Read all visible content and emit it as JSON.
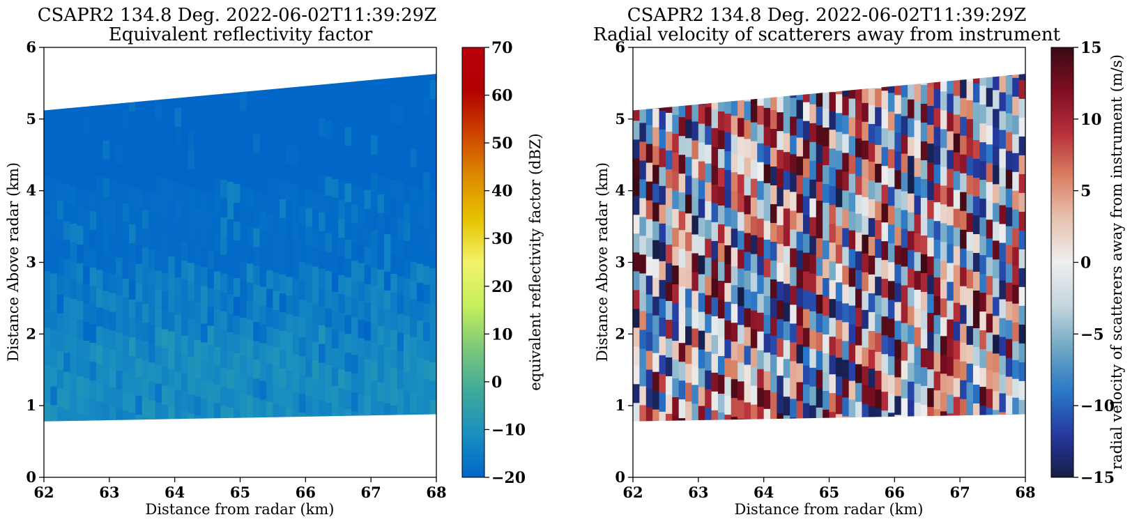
{
  "chart_data": [
    {
      "type": "heatmap",
      "title": "CSAPR2 134.8 Deg. 2022-06-02T11:39:29Z",
      "subtitle": "Equivalent reflectivity factor",
      "xlabel": "Distance from radar (km)",
      "ylabel": "Distance Above radar  (km)",
      "xlim": [
        62,
        68
      ],
      "ylim": [
        0,
        6
      ],
      "xticks": [
        "62",
        "63",
        "64",
        "65",
        "66",
        "67",
        "68"
      ],
      "yticks": [
        "0",
        "1",
        "2",
        "3",
        "4",
        "5",
        "6"
      ],
      "data_extent": {
        "bottom_left": 0.78,
        "bottom_right": 0.88,
        "top_left": 5.12,
        "top_right": 5.63
      },
      "field_description": "Mostly -20 to -15 dBZ above ~2 km, -15 to -8 dBZ between ~0.8 and 2 km",
      "colorbar": {
        "label": "equivalent reflectivity factor (dBZ)",
        "range": [
          -20,
          70
        ],
        "ticks": [
          "70",
          "60",
          "50",
          "40",
          "30",
          "20",
          "10",
          "0",
          "−10",
          "−20"
        ],
        "colors": [
          "#0066c8",
          "#1a8fc0",
          "#3faa9a",
          "#7cc87a",
          "#c6ef5c",
          "#f2f26a",
          "#e6c300",
          "#dd8a00",
          "#cc4400",
          "#b10000",
          "#b8000c"
        ]
      }
    },
    {
      "type": "heatmap",
      "title": "CSAPR2 134.8 Deg. 2022-06-02T11:39:29Z",
      "subtitle": "Radial velocity of scatterers away from instrument",
      "xlabel": "Distance from radar (km)",
      "ylabel": "Distance Above radar  (km)",
      "xlim": [
        62,
        68
      ],
      "ylim": [
        0,
        6
      ],
      "xticks": [
        "62",
        "63",
        "64",
        "65",
        "66",
        "67",
        "68"
      ],
      "yticks": [
        "0",
        "1",
        "2",
        "3",
        "4",
        "5",
        "6"
      ],
      "data_extent": {
        "bottom_left": 0.78,
        "bottom_right": 0.88,
        "top_left": 5.12,
        "top_right": 5.63
      },
      "field_description": "Noisy folded velocities spanning -15 to 15 m/s",
      "colorbar": {
        "label": "radial velocity of scatterers away from instrument (m/s)",
        "range": [
          -15,
          15
        ],
        "ticks": [
          "15",
          "10",
          "5",
          "0",
          "−5",
          "−10",
          "−15"
        ],
        "colors": [
          "#161d45",
          "#2639a0",
          "#2a78c7",
          "#6fa7c4",
          "#c5d6de",
          "#eeeeee",
          "#e8c3b2",
          "#d88062",
          "#b8303a",
          "#7e0e22",
          "#3a0a14"
        ]
      }
    }
  ]
}
